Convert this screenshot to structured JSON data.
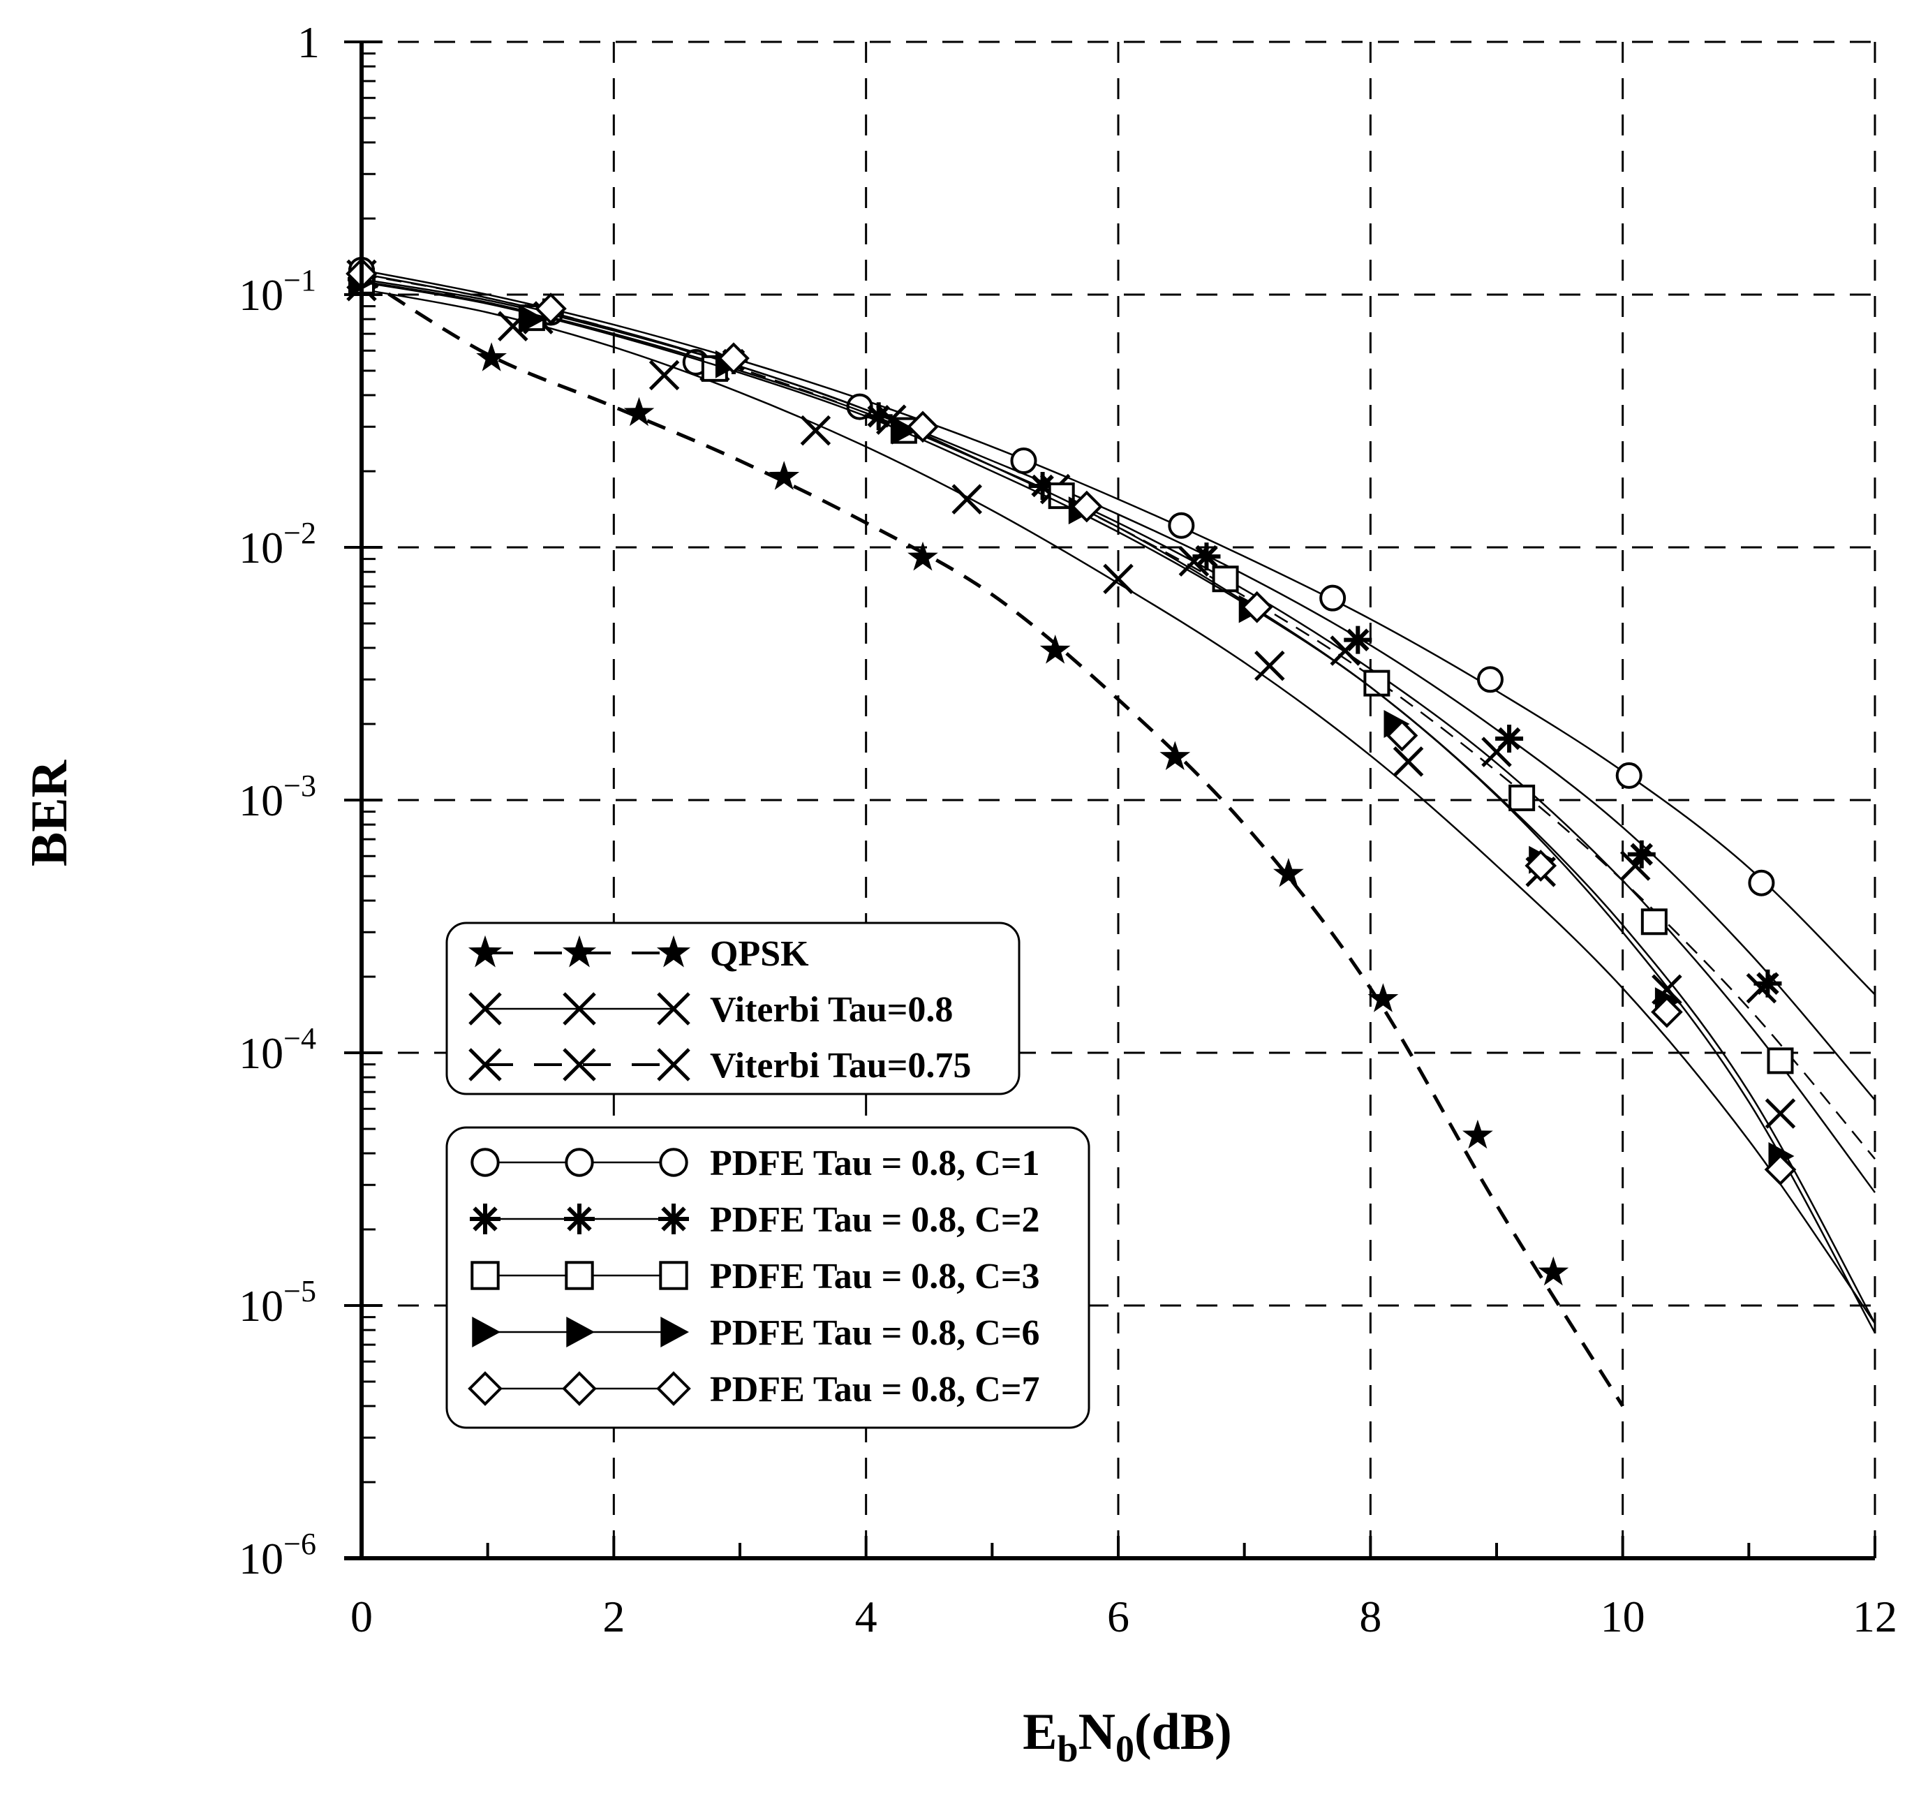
{
  "chart_data": {
    "type": "line",
    "title": "",
    "xlabel": "EbN0(dB)",
    "ylabel": "BER",
    "xlim": [
      0,
      12
    ],
    "ylim": [
      1e-06,
      1
    ],
    "yscale": "log",
    "grid": true,
    "legend_position": "lower-left",
    "x_tick_labels": [
      "0",
      "2",
      "4",
      "6",
      "8",
      "10",
      "12"
    ],
    "y_tick_labels": [
      {
        "base": "10",
        "exp": "−6"
      },
      {
        "base": "10",
        "exp": "−5"
      },
      {
        "base": "10",
        "exp": "−4"
      },
      {
        "base": "10",
        "exp": "−3"
      },
      {
        "base": "10",
        "exp": "−2"
      },
      {
        "base": "10",
        "exp": "−1"
      },
      {
        "base": "1",
        "exp": ""
      }
    ],
    "series": [
      {
        "name": "QPSK",
        "legend_group": 1,
        "marker": "star",
        "dash": true,
        "curve": {
          "x": [
            0,
            1,
            2,
            3,
            4,
            5,
            6,
            7,
            8,
            9,
            10
          ],
          "y": [
            0.118,
            0.058,
            0.036,
            0.022,
            0.0125,
            0.0065,
            0.0025,
            0.0008,
            0.00018,
            2.5e-05,
            4e-06
          ]
        },
        "markers": {
          "x": [
            0,
            1.03,
            2.2,
            3.35,
            4.45,
            5.5,
            6.45,
            7.35,
            8.1,
            8.85,
            9.45
          ],
          "y": [
            0.115,
            0.056,
            0.034,
            0.019,
            0.0091,
            0.0039,
            0.00148,
            0.00051,
            0.000163,
            4.7e-05,
            1.35e-05
          ]
        }
      },
      {
        "name": "Viterbi Tau=0.8",
        "legend_group": 1,
        "marker": "x",
        "dash": false,
        "curve": {
          "x": [
            0,
            1,
            2,
            3,
            4,
            5,
            6,
            7,
            8,
            9,
            10,
            11,
            12
          ],
          "y": [
            0.105,
            0.085,
            0.062,
            0.041,
            0.025,
            0.014,
            0.0072,
            0.0035,
            0.0015,
            0.00055,
            0.00018,
            4.5e-05,
            8.5e-06
          ]
        },
        "markers": {
          "x": [
            0,
            1.2,
            2.4,
            3.6,
            4.8,
            6.0,
            7.2,
            8.3,
            9.35,
            10.35,
            11.25
          ],
          "y": [
            0.108,
            0.075,
            0.048,
            0.029,
            0.0155,
            0.0075,
            0.0034,
            0.00142,
            0.00052,
            0.000178,
            5.75e-05
          ]
        }
      },
      {
        "name": "Viterbi Tau=0.75",
        "legend_group": 1,
        "marker": "x",
        "dash": true,
        "curve": {
          "x": [
            0,
            1,
            2,
            3,
            4,
            5,
            6,
            7,
            8,
            9,
            10,
            11,
            12
          ],
          "y": [
            0.12,
            0.097,
            0.073,
            0.051,
            0.034,
            0.021,
            0.012,
            0.0064,
            0.0031,
            0.0013,
            0.00048,
            0.00015,
            3.8e-05
          ]
        },
        "markers": {
          "x": [
            0,
            1.4,
            2.8,
            4.2,
            5.5,
            6.6,
            7.8,
            9.0,
            10.1,
            11.1
          ],
          "y": [
            0.12,
            0.08,
            0.052,
            0.032,
            0.017,
            0.0088,
            0.0039,
            0.00155,
            0.00055,
            0.00018
          ]
        }
      },
      {
        "name": "PDFE Tau = 0.8, C=1",
        "legend_group": 2,
        "marker": "circle",
        "dash": false,
        "curve": {
          "x": [
            0,
            1,
            2,
            3,
            4,
            5,
            6,
            7,
            8,
            9,
            10,
            11,
            12
          ],
          "y": [
            0.125,
            0.1,
            0.076,
            0.055,
            0.038,
            0.025,
            0.0155,
            0.0092,
            0.0052,
            0.0027,
            0.0013,
            0.00054,
            0.00017
          ]
        },
        "markers": {
          "x": [
            0,
            1.5,
            2.65,
            3.95,
            5.25,
            6.5,
            7.7,
            8.95,
            10.05,
            11.1
          ],
          "y": [
            0.125,
            0.085,
            0.054,
            0.036,
            0.022,
            0.0122,
            0.0063,
            0.003,
            0.00125,
            0.00047
          ]
        }
      },
      {
        "name": "PDFE Tau = 0.8, C=2",
        "legend_group": 2,
        "marker": "asterisk",
        "dash": false,
        "curve": {
          "x": [
            0,
            1,
            2,
            3,
            4,
            5,
            6,
            7,
            8,
            9,
            10,
            11,
            12
          ],
          "y": [
            0.115,
            0.095,
            0.072,
            0.052,
            0.035,
            0.022,
            0.0135,
            0.0078,
            0.0041,
            0.0019,
            0.00078,
            0.00025,
            6.5e-05
          ]
        },
        "markers": {
          "x": [
            0,
            1.45,
            2.95,
            4.1,
            5.4,
            6.7,
            7.9,
            9.1,
            10.15,
            11.15
          ],
          "y": [
            0.115,
            0.085,
            0.055,
            0.033,
            0.0175,
            0.0092,
            0.0043,
            0.00175,
            0.00061,
            0.000188
          ]
        }
      },
      {
        "name": "PDFE Tau = 0.8, C=3",
        "legend_group": 2,
        "marker": "square",
        "dash": false,
        "curve": {
          "x": [
            0,
            1,
            2,
            3,
            4,
            5,
            6,
            7,
            8,
            9,
            10,
            11,
            12
          ],
          "y": [
            0.113,
            0.093,
            0.07,
            0.05,
            0.034,
            0.021,
            0.0125,
            0.0068,
            0.0033,
            0.0014,
            0.00048,
            0.00013,
            2.8e-05
          ]
        },
        "markers": {
          "x": [
            0,
            1.35,
            2.8,
            4.3,
            5.55,
            6.85,
            8.05,
            9.2,
            10.25,
            11.25
          ],
          "y": [
            0.113,
            0.081,
            0.051,
            0.029,
            0.016,
            0.0075,
            0.0029,
            0.00102,
            0.00033,
            9.3e-05
          ]
        }
      },
      {
        "name": "PDFE Tau = 0.8, C=6",
        "legend_group": 2,
        "marker": "triangle-right",
        "dash": false,
        "curve": {
          "x": [
            0,
            1,
            2,
            3,
            4,
            5,
            6,
            7,
            8,
            9,
            10,
            11,
            12
          ],
          "y": [
            0.112,
            0.092,
            0.069,
            0.049,
            0.033,
            0.02,
            0.0115,
            0.006,
            0.0028,
            0.00105,
            0.00032,
            7e-05,
            8.5e-06
          ]
        },
        "markers": {
          "x": [
            0,
            1.35,
            2.9,
            4.3,
            5.7,
            7.05,
            8.2,
            9.35,
            10.35,
            11.25
          ],
          "y": [
            0.112,
            0.08,
            0.053,
            0.029,
            0.014,
            0.0057,
            0.002,
            0.00058,
            0.00016,
            3.9e-05
          ]
        }
      },
      {
        "name": "PDFE Tau = 0.8, C=7",
        "legend_group": 2,
        "marker": "diamond",
        "dash": false,
        "curve": {
          "x": [
            0,
            1,
            2,
            3,
            4,
            5,
            6,
            7,
            8,
            9,
            10,
            11,
            12
          ],
          "y": [
            0.121,
            0.097,
            0.073,
            0.052,
            0.035,
            0.021,
            0.012,
            0.0061,
            0.0028,
            0.00104,
            0.0003,
            6.4e-05,
            7.8e-06
          ]
        },
        "markers": {
          "x": [
            0,
            1.5,
            2.95,
            4.45,
            5.75,
            7.1,
            8.25,
            9.35,
            10.35,
            11.25
          ],
          "y": [
            0.121,
            0.088,
            0.056,
            0.03,
            0.0145,
            0.0058,
            0.0018,
            0.00055,
            0.000145,
            3.45e-05
          ]
        }
      }
    ]
  }
}
